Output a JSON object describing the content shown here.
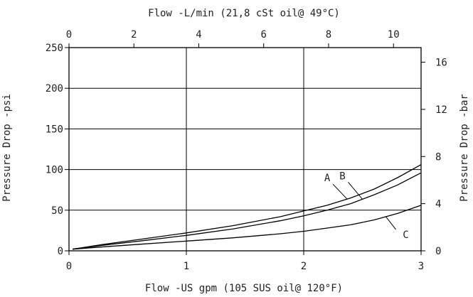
{
  "chart_data": {
    "type": "line",
    "title_top": "Flow -L/min (21,8 cSt oil@ 49°C)",
    "xlabel_bottom": "Flow -US gpm (105 SUS oil@ 120°F)",
    "ylabel_left": "Pressure Drop -psi",
    "ylabel_right": "Pressure Drop -bar",
    "x_bottom": {
      "min": 0,
      "max": 3,
      "ticks": [
        "0",
        "1",
        "2",
        "3"
      ]
    },
    "x_top": {
      "min": 0,
      "max": 10.85,
      "ticks": [
        "0",
        "2",
        "4",
        "6",
        "8",
        "10"
      ]
    },
    "y_left": {
      "min": 0,
      "max": 250,
      "ticks": [
        "0",
        "50",
        "100",
        "150",
        "200",
        "250"
      ]
    },
    "y_right": {
      "min": 0,
      "max": 17.24,
      "ticks": [
        "0",
        "4",
        "8",
        "12",
        "16"
      ]
    },
    "grid": true,
    "series": [
      {
        "name": "A",
        "x": [
          0.03,
          0.3,
          0.6,
          1.0,
          1.4,
          1.8,
          2.0,
          2.2,
          2.4,
          2.6,
          2.8,
          3.0
        ],
        "y": [
          2,
          8,
          14,
          22,
          31,
          42,
          49,
          56,
          65,
          76,
          90,
          106
        ]
      },
      {
        "name": "B",
        "x": [
          0.03,
          0.3,
          0.6,
          1.0,
          1.4,
          1.8,
          2.0,
          2.2,
          2.4,
          2.6,
          2.8,
          3.0
        ],
        "y": [
          2,
          7,
          12,
          19,
          27,
          37,
          43,
          50,
          58,
          69,
          81,
          96
        ]
      },
      {
        "name": "C",
        "x": [
          0.03,
          0.3,
          0.6,
          1.0,
          1.4,
          1.8,
          2.0,
          2.2,
          2.4,
          2.6,
          2.8,
          3.0
        ],
        "y": [
          2,
          5,
          8,
          12,
          16,
          21,
          24,
          28,
          32,
          38,
          46,
          56
        ]
      }
    ]
  }
}
